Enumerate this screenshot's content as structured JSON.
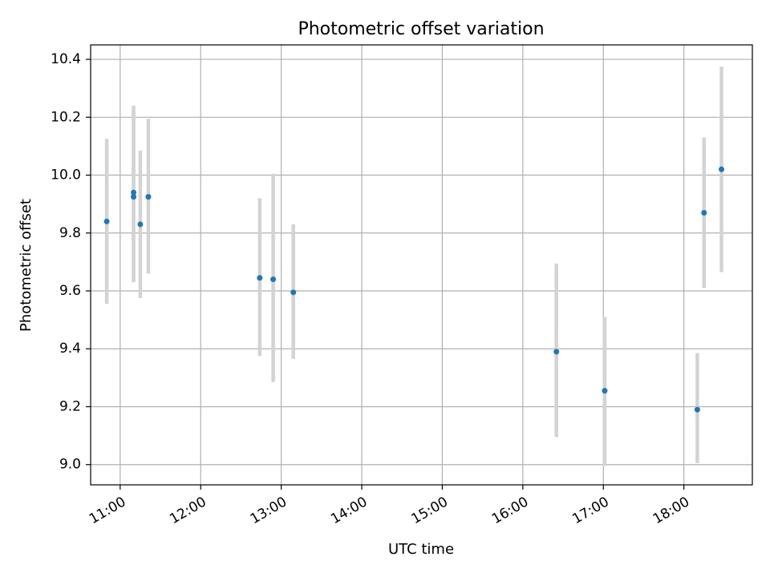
{
  "chart_data": {
    "type": "scatter",
    "title": "Photometric offset variation",
    "xlabel": "UTC time",
    "ylabel": "Photometric offset",
    "x_tick_labels": [
      "11:00",
      "12:00",
      "13:00",
      "14:00",
      "15:00",
      "16:00",
      "17:00",
      "18:00"
    ],
    "x_tick_hours": [
      11,
      12,
      13,
      14,
      15,
      16,
      17,
      18
    ],
    "y_tick_labels": [
      "9.0",
      "9.2",
      "9.4",
      "9.6",
      "9.8",
      "10.0",
      "10.2",
      "10.4"
    ],
    "y_ticks": [
      9.0,
      9.2,
      9.4,
      9.6,
      9.8,
      10.0,
      10.2,
      10.4
    ],
    "xlim": [
      "10:38",
      "18:51"
    ],
    "ylim": [
      8.93,
      10.45
    ],
    "grid": true,
    "colors": {
      "marker": "#1f77b4",
      "errorbar": "#d3d3d3"
    },
    "points": [
      {
        "time": "10:50",
        "y": 9.84,
        "ylow": 9.555,
        "yhigh": 10.125
      },
      {
        "time": "11:10",
        "y": 9.925,
        "ylow": 9.63,
        "yhigh": 10.22
      },
      {
        "time": "11:10",
        "y": 9.94,
        "ylow": 9.64,
        "yhigh": 10.24
      },
      {
        "time": "11:15",
        "y": 9.83,
        "ylow": 9.575,
        "yhigh": 10.085
      },
      {
        "time": "11:21",
        "y": 9.925,
        "ylow": 9.66,
        "yhigh": 10.195
      },
      {
        "time": "12:44",
        "y": 9.645,
        "ylow": 9.375,
        "yhigh": 9.92
      },
      {
        "time": "12:54",
        "y": 9.64,
        "ylow": 9.285,
        "yhigh": 10.005
      },
      {
        "time": "13:09",
        "y": 9.595,
        "ylow": 9.365,
        "yhigh": 9.83
      },
      {
        "time": "16:25",
        "y": 9.39,
        "ylow": 9.095,
        "yhigh": 9.695
      },
      {
        "time": "17:01",
        "y": 9.255,
        "ylow": 8.995,
        "yhigh": 9.51
      },
      {
        "time": "18:10",
        "y": 9.19,
        "ylow": 9.005,
        "yhigh": 9.385
      },
      {
        "time": "18:15",
        "y": 9.87,
        "ylow": 9.61,
        "yhigh": 10.13
      },
      {
        "time": "18:28",
        "y": 10.02,
        "ylow": 9.665,
        "yhigh": 10.375
      }
    ]
  }
}
